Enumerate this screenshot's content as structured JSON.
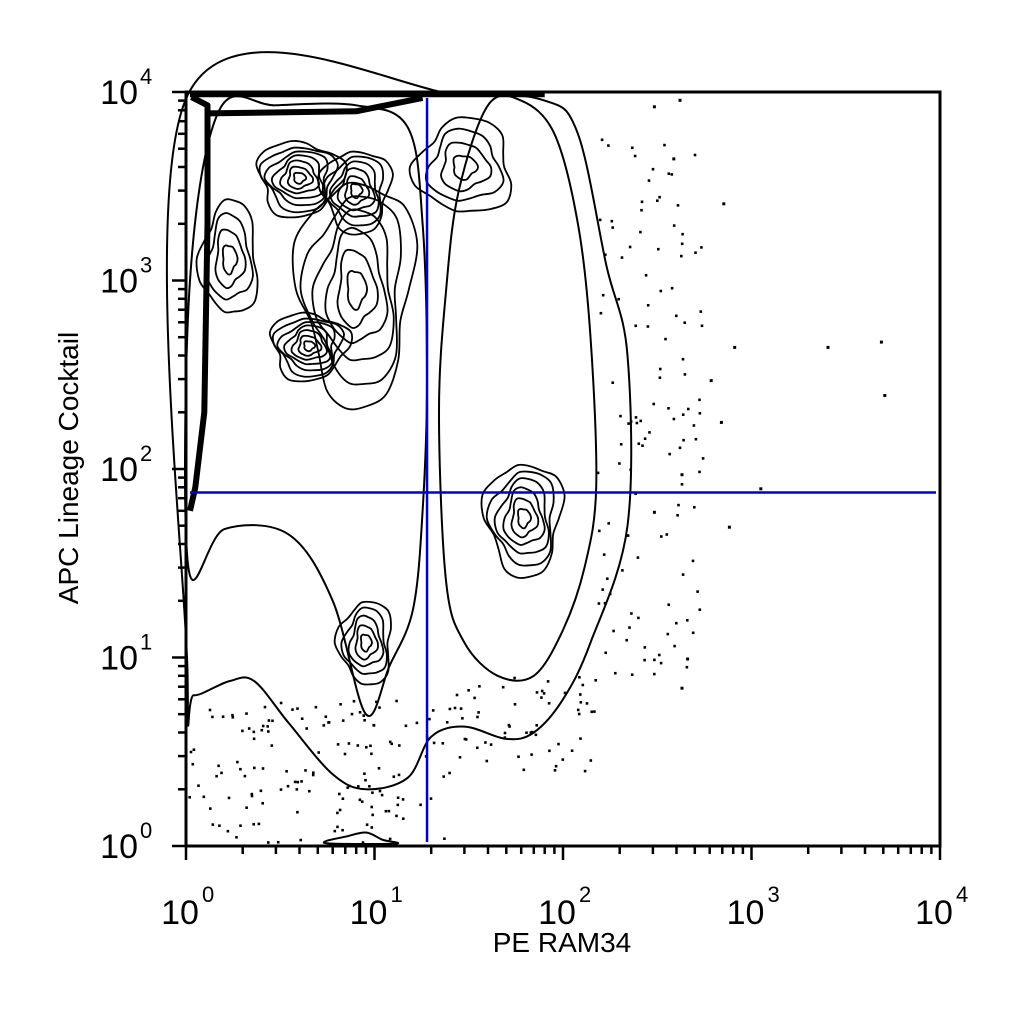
{
  "chart_data": {
    "type": "scatter",
    "subtype": "flow-cytometry contour plot with outlier dots",
    "xlabel": "PE RAM34",
    "ylabel": "APC Lineage Cocktail",
    "xscale": "log",
    "yscale": "log",
    "xlim": [
      1,
      10000
    ],
    "ylim": [
      1,
      10000
    ],
    "x_ticks": [
      {
        "base": "10",
        "exp": "0",
        "value": 1
      },
      {
        "base": "10",
        "exp": "1",
        "value": 10
      },
      {
        "base": "10",
        "exp": "2",
        "value": 100
      },
      {
        "base": "10",
        "exp": "3",
        "value": 1000
      },
      {
        "base": "10",
        "exp": "4",
        "value": 10000
      }
    ],
    "y_ticks": [
      {
        "base": "10",
        "exp": "0",
        "value": 1
      },
      {
        "base": "10",
        "exp": "1",
        "value": 10
      },
      {
        "base": "10",
        "exp": "2",
        "value": 100
      },
      {
        "base": "10",
        "exp": "3",
        "value": 1000
      },
      {
        "base": "10",
        "exp": "4",
        "value": 10000
      }
    ],
    "quadrant_gate": {
      "x": 19,
      "y": 75,
      "color": "#0000cc"
    },
    "populations": [
      {
        "center": [
          4,
          3500
        ],
        "spread": [
          0.22,
          0.2
        ],
        "levels": 7
      },
      {
        "center": [
          8,
          3000
        ],
        "spread": [
          0.18,
          0.22
        ],
        "levels": 6
      },
      {
        "center": [
          4.5,
          450
        ],
        "spread": [
          0.2,
          0.18
        ],
        "levels": 7
      },
      {
        "center": [
          1.7,
          1300
        ],
        "spread": [
          0.15,
          0.3
        ],
        "levels": 4
      },
      {
        "center": [
          30,
          4000
        ],
        "spread": [
          0.25,
          0.25
        ],
        "levels": 4
      },
      {
        "center": [
          62,
          55
        ],
        "spread": [
          0.2,
          0.3
        ],
        "levels": 6
      },
      {
        "center": [
          9,
          12
        ],
        "spread": [
          0.14,
          0.22
        ],
        "levels": 5
      },
      {
        "center": [
          8,
          900
        ],
        "spread": [
          0.3,
          0.6
        ],
        "levels": 6
      }
    ],
    "outer_contours": [
      {
        "name": "outer",
        "points": [
          [
            1.02,
            9600
          ],
          [
            30,
            9600
          ],
          [
            80,
            9000
          ],
          [
            120,
            6000
          ],
          [
            170,
            1200
          ],
          [
            220,
            400
          ],
          [
            220,
            50
          ],
          [
            140,
            12
          ],
          [
            100,
            6
          ],
          [
            70,
            4
          ],
          [
            50,
            3.7
          ],
          [
            30,
            4.3
          ],
          [
            20,
            3.8
          ],
          [
            15,
            2.3
          ],
          [
            9,
            2.0
          ],
          [
            6,
            2.4
          ],
          [
            3.5,
            4.5
          ],
          [
            2.3,
            7.5
          ],
          [
            1.7,
            7.5
          ],
          [
            1.1,
            6.3
          ],
          [
            1.02,
            8
          ]
        ]
      },
      {
        "name": "lower-left",
        "points": [
          [
            1.03,
            30
          ],
          [
            1.6,
            48
          ],
          [
            3.5,
            45
          ],
          [
            6,
            20
          ],
          [
            9,
            5
          ],
          [
            12,
            9
          ],
          [
            16,
            18
          ],
          [
            18,
            60
          ],
          [
            19,
            300
          ],
          [
            18,
            2000
          ],
          [
            15,
            6500
          ],
          [
            8,
            8500
          ],
          [
            3,
            8500
          ],
          [
            1.5,
            8000
          ],
          [
            1.05,
            1000
          ]
        ]
      },
      {
        "name": "right-band",
        "points": [
          [
            22,
            200
          ],
          [
            24,
            25
          ],
          [
            30,
            12
          ],
          [
            45,
            8
          ],
          [
            70,
            8
          ],
          [
            100,
            14
          ],
          [
            130,
            30
          ],
          [
            150,
            80
          ],
          [
            140,
            500
          ],
          [
            120,
            2000
          ],
          [
            90,
            6000
          ],
          [
            60,
            9000
          ],
          [
            40,
            8500
          ],
          [
            28,
            3000
          ],
          [
            24,
            900
          ]
        ]
      },
      {
        "name": "bottom-sliver",
        "points": [
          [
            5.5,
            1.06
          ],
          [
            7,
            1.12
          ],
          [
            9,
            1.18
          ],
          [
            11,
            1.08
          ],
          [
            13,
            1.03
          ],
          [
            6,
            1.03
          ]
        ]
      }
    ],
    "dense_edge": {
      "points": [
        [
          1.07,
          9400
        ],
        [
          1.3,
          8500
        ],
        [
          1.3,
          2000
        ],
        [
          1.25,
          200
        ],
        [
          1.12,
          80
        ],
        [
          1.05,
          60
        ]
      ],
      "top": [
        [
          1.3,
          7700
        ],
        [
          8,
          7900
        ],
        [
          18,
          9300
        ]
      ]
    },
    "outlier_clouds": [
      {
        "count": 140,
        "x_range": [
          1.0,
          25
        ],
        "y_range": [
          1.05,
          6
        ]
      },
      {
        "count": 120,
        "x_range": [
          150,
          550
        ],
        "y_range": [
          8,
          6000
        ]
      },
      {
        "count": 60,
        "x_range": [
          20,
          150
        ],
        "y_range": [
          2.5,
          8
        ]
      }
    ],
    "sparse_outliers": [
      [
        2500,
        450
      ],
      [
        4800,
        480
      ],
      [
        5000,
        250
      ],
      [
        700,
        2600
      ],
      [
        1100,
        80
      ],
      [
        750,
        50
      ],
      [
        450,
        10
      ],
      [
        420,
        7
      ],
      [
        600,
        300
      ],
      [
        800,
        450
      ],
      [
        380,
        4500
      ],
      [
        410,
        9200
      ],
      [
        300,
        8500
      ],
      [
        420,
        95
      ],
      [
        680,
        180
      ],
      [
        300,
        60
      ]
    ]
  }
}
